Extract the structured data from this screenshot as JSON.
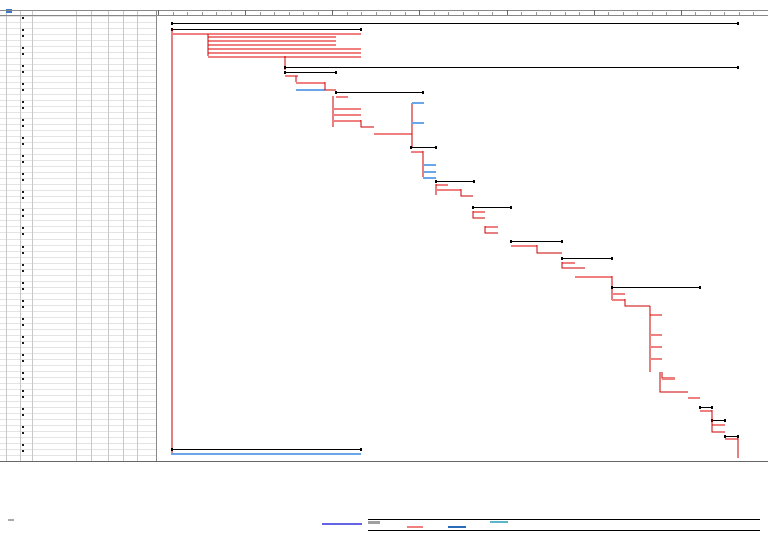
{
  "app": {
    "title": ""
  },
  "colors": {
    "grid_line": "#c8c8c8",
    "grid_row": "#e4e4e4",
    "critical_bar": "#f08080",
    "critical_link": "#cc0000",
    "normal_bar": "#6aa6e8",
    "summary_bar": "#000000",
    "indicator": "#3b78c8",
    "legend_blue": "#3030d8",
    "legend_gray": "#a0a0a0",
    "legend_red": "#f08080",
    "legend_dark_blue": "#2b6cb8",
    "legend_teal": "#5cb6c8"
  },
  "task_table": {
    "row_count": 74,
    "columns": []
  },
  "timeline": {
    "major_tick_count": 7,
    "minor_tick_count": 42,
    "bars": []
  },
  "legend": {
    "items": [
      {
        "icon": "split-line-legend"
      },
      {
        "icon": "task-legend"
      },
      {
        "icon": "critical-task-legend"
      },
      {
        "icon": "progress-legend"
      },
      {
        "icon": "milestone-legend"
      }
    ]
  }
}
